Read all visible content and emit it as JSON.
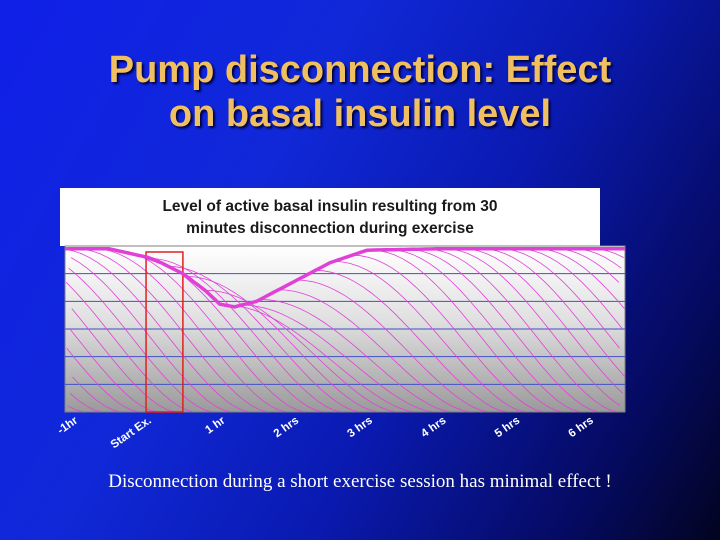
{
  "slide": {
    "title_line1": "Pump disconnection:  Effect",
    "title_line2": "on basal insulin level",
    "caption": "Disconnection during a short exercise session has minimal effect !"
  },
  "colors": {
    "title": "#f0c060",
    "curve": "#e040d8",
    "highlight_box": "#e02020",
    "gridline": "#4050c8"
  },
  "chart_data": {
    "type": "line",
    "title_line1": "Level of active basal insulin resulting from 30",
    "title_line2": "minutes disconnection during exercise",
    "xlabel": "",
    "ylabel": "",
    "x_ticks": [
      "-1hr",
      "Start Ex.",
      "1 hr",
      "2 hrs",
      "3 hrs",
      "4 hrs",
      "5 hrs",
      "6 hrs"
    ],
    "x_tick_hours": [
      -1,
      0,
      1,
      2,
      3,
      4,
      5,
      6
    ],
    "xlim": [
      -1.1,
      6.5
    ],
    "ylim": [
      0,
      6
    ],
    "grid": true,
    "legend": "none",
    "disconnection_window_hours": [
      0,
      0.5
    ],
    "series": [
      {
        "x": [
          -1.1,
          -0.5,
          0,
          0.2,
          0.5,
          0.8,
          1.0,
          1.2,
          1.5,
          2.0,
          2.5,
          3.0,
          4.0,
          5.0,
          6.0,
          6.5
        ],
        "values": [
          5.9,
          5.9,
          5.6,
          5.4,
          5.0,
          4.4,
          3.9,
          3.8,
          4.0,
          4.7,
          5.4,
          5.85,
          5.9,
          5.9,
          5.9,
          5.9
        ]
      }
    ]
  }
}
